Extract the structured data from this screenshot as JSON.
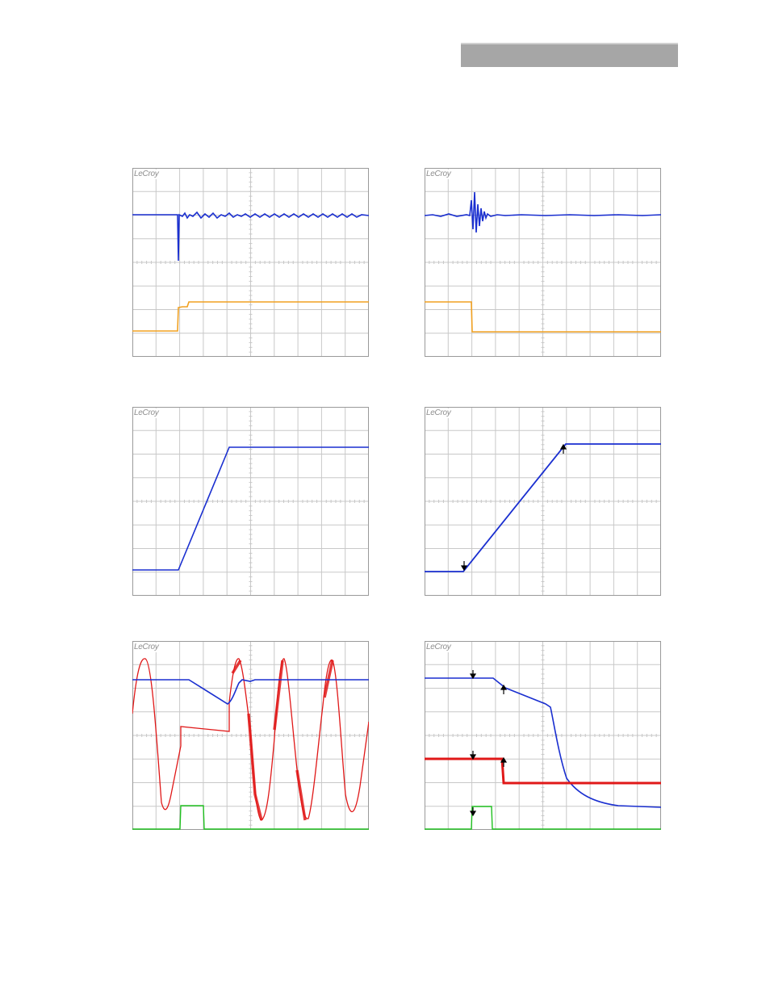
{
  "page": {
    "brand_label": "LeCroy"
  },
  "colors": {
    "grid": "#c8c8c8",
    "frame": "#9a9a9a",
    "ch_blue": "#1a2fd0",
    "ch_orange": "#f0a020",
    "ch_red": "#e01818",
    "ch_green": "#20c020",
    "marker": "#000000"
  },
  "scopes": [
    {
      "id": "scope-1",
      "brand": "LeCroy"
    },
    {
      "id": "scope-2",
      "brand": "LeCroy"
    },
    {
      "id": "scope-3",
      "brand": "LeCroy"
    },
    {
      "id": "scope-4",
      "brand": "LeCroy"
    },
    {
      "id": "scope-5",
      "brand": "LeCroy"
    },
    {
      "id": "scope-6",
      "brand": "LeCroy"
    }
  ]
}
